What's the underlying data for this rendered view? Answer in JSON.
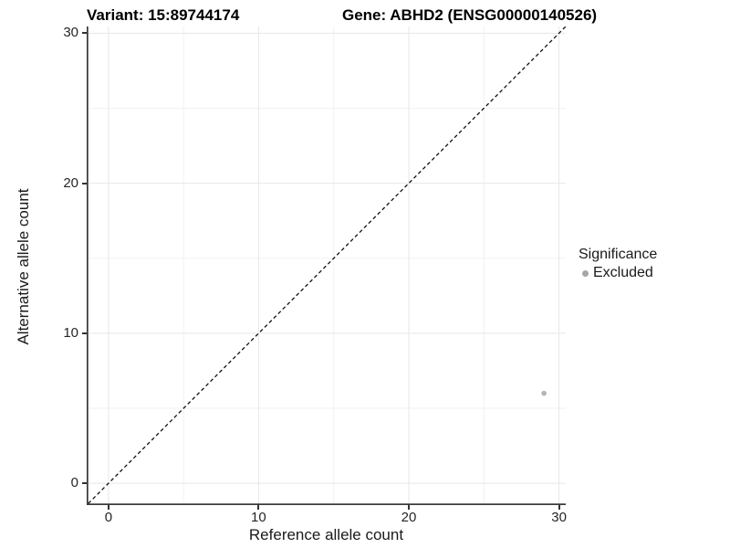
{
  "titles": {
    "variant": "Variant: 15:89744174",
    "gene": "Gene: ABHD2 (ENSG00000140526)"
  },
  "chart_data": {
    "type": "scatter",
    "title": "Variant: 15:89744174 / Gene: ABHD2 (ENSG00000140526)",
    "xlabel": "Reference allele count",
    "ylabel": "Alternative allele count",
    "xlim": [
      -1.45,
      30.45
    ],
    "ylim": [
      -1.45,
      30.45
    ],
    "x_ticks": [
      0,
      10,
      20,
      30
    ],
    "y_ticks": [
      0,
      10,
      20,
      30
    ],
    "x_minor_ticks": [
      5,
      15,
      25
    ],
    "y_minor_ticks": [
      5,
      15,
      25
    ],
    "grid": "major and minor, light gray on white",
    "points": [
      {
        "x": 29,
        "y": 6,
        "series": "Excluded"
      }
    ],
    "reference_line": {
      "type": "diagonal",
      "slope": 1,
      "intercept": 0,
      "style": "dashed",
      "color": "#111111"
    },
    "legend": {
      "title": "Significance",
      "position": "right",
      "entries": [
        {
          "label": "Excluded",
          "color": "#a6a6a6",
          "marker": "circle"
        }
      ]
    }
  },
  "colors": {
    "point": "#b3b3b3",
    "grid_major": "#e7e7e7",
    "grid_minor": "#f2f2f2",
    "axis_line": "#383838",
    "tick_text": "#262626"
  }
}
